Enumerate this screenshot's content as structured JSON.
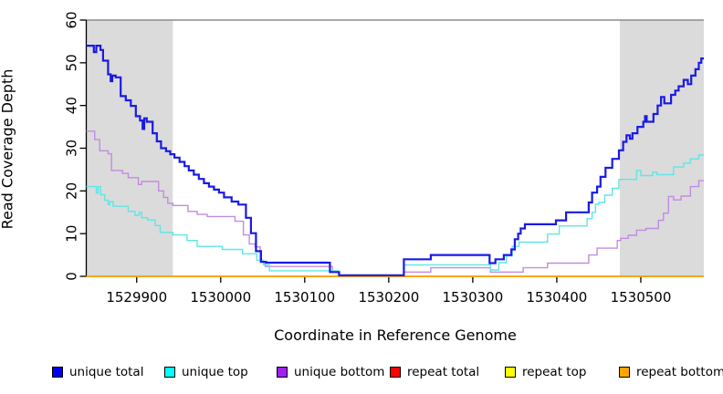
{
  "figure": {
    "xlabel": "Coordinate in Reference Genome",
    "ylabel": "Read Coverage Depth"
  },
  "chart_data": {
    "type": "line",
    "step": true,
    "title": "",
    "xlabel": "Coordinate in Reference Genome",
    "ylabel": "Read Coverage Depth",
    "xlim": [
      1529840,
      1530575
    ],
    "ylim": [
      0,
      60
    ],
    "x_ticks": [
      1529900,
      1530000,
      1530100,
      1530200,
      1530300,
      1530400,
      1530500
    ],
    "y_ticks": [
      0,
      10,
      20,
      30,
      40,
      50,
      60
    ],
    "grid": false,
    "legend_position": "bottom",
    "shaded_regions": [
      {
        "x0": 1529840,
        "x1": 1529943,
        "color": "#DBDBDB"
      },
      {
        "x0": 1530475,
        "x1": 1530575,
        "color": "#DBDBDB"
      }
    ],
    "reference_line": {
      "y": 60,
      "color": "#8C8C8C"
    },
    "axis_color": "#000000",
    "legend": [
      {
        "label": "unique total",
        "color": "#0000EE"
      },
      {
        "label": "unique top",
        "color": "#00FFFF"
      },
      {
        "label": "unique bottom",
        "color": "#A020F0"
      },
      {
        "label": "repeat total",
        "color": "#FF0000"
      },
      {
        "label": "repeat top",
        "color": "#FFFF00"
      },
      {
        "label": "repeat bottom",
        "color": "#FFA500"
      }
    ],
    "series": [
      {
        "name": "repeat total",
        "color": "#FF0000",
        "width": 1.4,
        "raise_zero": false,
        "points": [
          [
            1529840,
            0
          ]
        ]
      },
      {
        "name": "repeat top",
        "color": "#FFFF00",
        "width": 1.4,
        "raise_zero": false,
        "points": [
          [
            1529840,
            0
          ]
        ]
      },
      {
        "name": "repeat bottom",
        "color": "#FFA500",
        "width": 1.8,
        "raise_zero": false,
        "points": [
          [
            1529840,
            0
          ]
        ]
      },
      {
        "name": "unique bottom",
        "color": "#C18CE0",
        "width": 1.4,
        "raise_zero": true,
        "points": [
          [
            1529840,
            34
          ],
          [
            1529850,
            32
          ],
          [
            1529856,
            29.4
          ],
          [
            1529866,
            28.7
          ],
          [
            1529870,
            24.8
          ],
          [
            1529883,
            24.1
          ],
          [
            1529890,
            23.1
          ],
          [
            1529902,
            21.5
          ],
          [
            1529906,
            22.2
          ],
          [
            1529926,
            20
          ],
          [
            1529932,
            18.5
          ],
          [
            1529937,
            17.1
          ],
          [
            1529943,
            16.6
          ],
          [
            1529961,
            15.2
          ],
          [
            1529972,
            14.5
          ],
          [
            1529984,
            14
          ],
          [
            1530017,
            12.9
          ],
          [
            1530027,
            9.7
          ],
          [
            1530034,
            7.6
          ],
          [
            1530041,
            6.9
          ],
          [
            1530047,
            3.4
          ],
          [
            1530053,
            2.3
          ],
          [
            1530133,
            1
          ],
          [
            1530141,
            0
          ],
          [
            1530218,
            1
          ],
          [
            1530250,
            2
          ],
          [
            1530321,
            1
          ],
          [
            1530360,
            2
          ],
          [
            1530389,
            3.1
          ],
          [
            1530438,
            5
          ],
          [
            1530448,
            6.6
          ],
          [
            1530472,
            8.4
          ],
          [
            1530476,
            8.9
          ],
          [
            1530485,
            9.6
          ],
          [
            1530495,
            10.8
          ],
          [
            1530506,
            11.2
          ],
          [
            1530521,
            13.1
          ],
          [
            1530527,
            14.8
          ],
          [
            1530533,
            18.7
          ],
          [
            1530539,
            17.9
          ],
          [
            1530548,
            18.8
          ],
          [
            1530559,
            21
          ],
          [
            1530569,
            22.4
          ]
        ]
      },
      {
        "name": "unique top",
        "color": "#5FE6E6",
        "width": 1.4,
        "raise_zero": true,
        "points": [
          [
            1529840,
            21
          ],
          [
            1529852,
            19.5
          ],
          [
            1529854,
            21
          ],
          [
            1529857,
            19.1
          ],
          [
            1529862,
            17.8
          ],
          [
            1529866,
            16.8
          ],
          [
            1529868,
            17.5
          ],
          [
            1529872,
            16.4
          ],
          [
            1529890,
            15.2
          ],
          [
            1529898,
            14.3
          ],
          [
            1529903,
            15
          ],
          [
            1529906,
            13.7
          ],
          [
            1529913,
            13.2
          ],
          [
            1529922,
            11.9
          ],
          [
            1529928,
            10.3
          ],
          [
            1529943,
            9.7
          ],
          [
            1529960,
            8.4
          ],
          [
            1529972,
            7
          ],
          [
            1530002,
            6.3
          ],
          [
            1530026,
            5.3
          ],
          [
            1530043,
            3.8
          ],
          [
            1530051,
            2.7
          ],
          [
            1530058,
            1.3
          ],
          [
            1530140,
            0
          ],
          [
            1530218,
            2.7
          ],
          [
            1530321,
            1.5
          ],
          [
            1530331,
            3.2
          ],
          [
            1530340,
            4.8
          ],
          [
            1530347,
            7
          ],
          [
            1530355,
            8
          ],
          [
            1530389,
            9.9
          ],
          [
            1530403,
            11.8
          ],
          [
            1530436,
            13.5
          ],
          [
            1530442,
            15
          ],
          [
            1530446,
            16.9
          ],
          [
            1530450,
            17.3
          ],
          [
            1530457,
            19
          ],
          [
            1530466,
            20.6
          ],
          [
            1530474,
            22.7
          ],
          [
            1530495,
            24.8
          ],
          [
            1530500,
            23.6
          ],
          [
            1530514,
            24.4
          ],
          [
            1530519,
            23.8
          ],
          [
            1530539,
            25.6
          ],
          [
            1530551,
            26.5
          ],
          [
            1530559,
            27.5
          ],
          [
            1530569,
            28.4
          ]
        ]
      },
      {
        "name": "unique total",
        "color": "#1A1AE6",
        "width": 2.2,
        "raise_zero": true,
        "points": [
          [
            1529840,
            54
          ],
          [
            1529849,
            52.5
          ],
          [
            1529852,
            54
          ],
          [
            1529857,
            53
          ],
          [
            1529860,
            50.5
          ],
          [
            1529866,
            47.3
          ],
          [
            1529869,
            45.7
          ],
          [
            1529871,
            47
          ],
          [
            1529875,
            46.6
          ],
          [
            1529881,
            42.2
          ],
          [
            1529887,
            41.2
          ],
          [
            1529893,
            39.9
          ],
          [
            1529899,
            37.5
          ],
          [
            1529904,
            36.5
          ],
          [
            1529907,
            34.5
          ],
          [
            1529909,
            37
          ],
          [
            1529912,
            36.2
          ],
          [
            1529919,
            33.5
          ],
          [
            1529924,
            31.6
          ],
          [
            1529929,
            30
          ],
          [
            1529935,
            29.3
          ],
          [
            1529940,
            28.6
          ],
          [
            1529945,
            27.8
          ],
          [
            1529951,
            26.8
          ],
          [
            1529957,
            25.8
          ],
          [
            1529962,
            24.8
          ],
          [
            1529968,
            23.8
          ],
          [
            1529974,
            22.8
          ],
          [
            1529980,
            21.8
          ],
          [
            1529986,
            21
          ],
          [
            1529992,
            20.3
          ],
          [
            1529998,
            19.6
          ],
          [
            1530004,
            18.5
          ],
          [
            1530013,
            17.5
          ],
          [
            1530021,
            16.8
          ],
          [
            1530030,
            13.7
          ],
          [
            1530036,
            10.1
          ],
          [
            1530042,
            5.9
          ],
          [
            1530048,
            3.4
          ],
          [
            1530054,
            3.2
          ],
          [
            1530130,
            1
          ],
          [
            1530141,
            0
          ],
          [
            1530218,
            4
          ],
          [
            1530250,
            5
          ],
          [
            1530320,
            3.1
          ],
          [
            1530327,
            4
          ],
          [
            1530337,
            5
          ],
          [
            1530346,
            6.3
          ],
          [
            1530350,
            8.7
          ],
          [
            1530354,
            10
          ],
          [
            1530357,
            11.2
          ],
          [
            1530362,
            12.2
          ],
          [
            1530399,
            13.1
          ],
          [
            1530411,
            15
          ],
          [
            1530438,
            17.3
          ],
          [
            1530442,
            19.6
          ],
          [
            1530448,
            21
          ],
          [
            1530452,
            23.3
          ],
          [
            1530458,
            25.4
          ],
          [
            1530466,
            27.5
          ],
          [
            1530474,
            29.5
          ],
          [
            1530479,
            31.5
          ],
          [
            1530483,
            33
          ],
          [
            1530487,
            32.2
          ],
          [
            1530490,
            33.5
          ],
          [
            1530496,
            35
          ],
          [
            1530503,
            36.2
          ],
          [
            1530505,
            37.5
          ],
          [
            1530507,
            36.2
          ],
          [
            1530515,
            38
          ],
          [
            1530520,
            40
          ],
          [
            1530524,
            42
          ],
          [
            1530528,
            40.5
          ],
          [
            1530536,
            42.5
          ],
          [
            1530541,
            43.5
          ],
          [
            1530545,
            44.5
          ],
          [
            1530551,
            46
          ],
          [
            1530556,
            45
          ],
          [
            1530560,
            47
          ],
          [
            1530565,
            48.5
          ],
          [
            1530569,
            50
          ],
          [
            1530572,
            51
          ]
        ]
      }
    ]
  }
}
